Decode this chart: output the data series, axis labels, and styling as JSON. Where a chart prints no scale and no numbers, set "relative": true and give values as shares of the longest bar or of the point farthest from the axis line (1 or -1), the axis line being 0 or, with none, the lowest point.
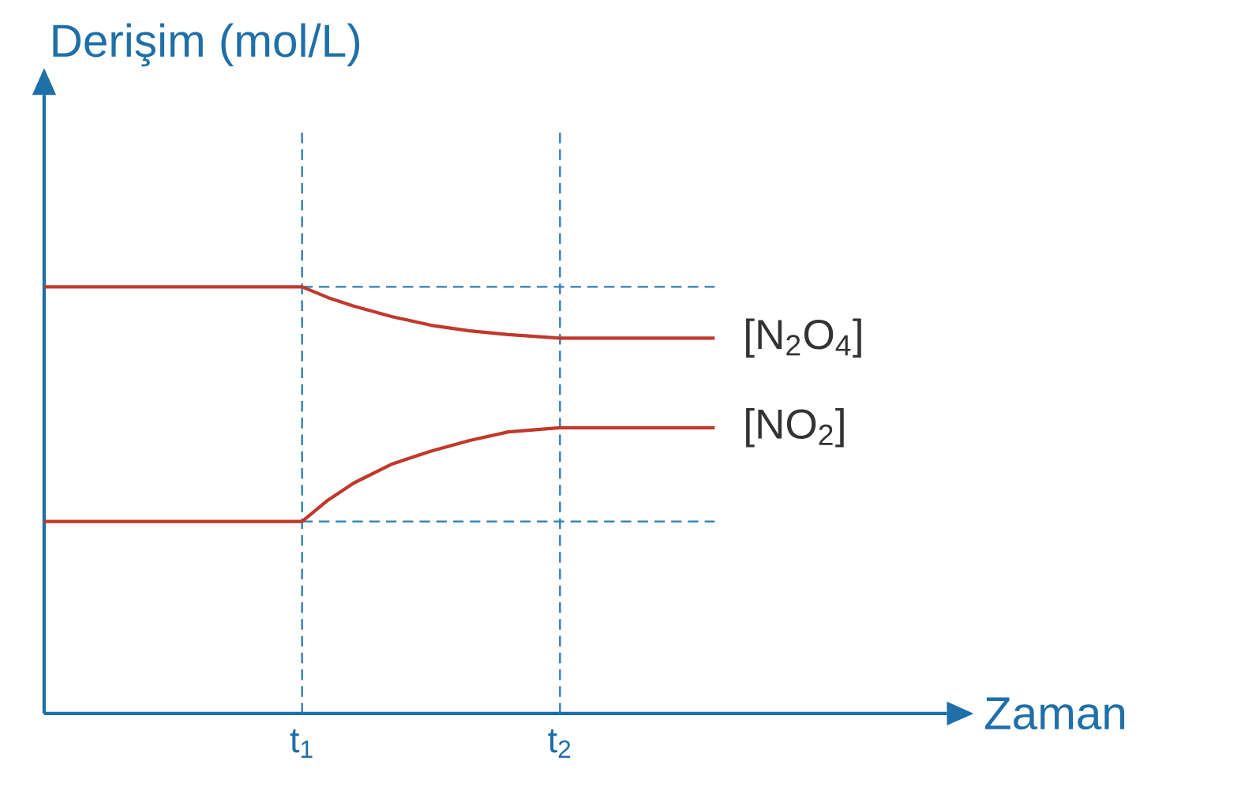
{
  "chart_data": {
    "type": "line",
    "relative": true,
    "xlabel": "Zaman",
    "ylabel": "Derişim (mol/L)",
    "xlim": [
      0,
      3.5
    ],
    "xticks": [
      {
        "value": 1,
        "label": "t$_{1}$"
      },
      {
        "value": 2,
        "label": "t$_{2}$"
      }
    ],
    "tick_labels": "x",
    "marker": "none",
    "line_style": "solid",
    "series": [
      {
        "name": "[N$_{2}$O$_{4}$]",
        "color": "#c0392b",
        "x": [
          0,
          1,
          1.1,
          1.2,
          1.35,
          1.5,
          1.65,
          1.8,
          2,
          2.6
        ],
        "values": [
          1,
          1,
          0.975,
          0.955,
          0.93,
          0.91,
          0.897,
          0.888,
          0.88,
          0.88
        ]
      },
      {
        "name": "[NO$_{2}$]",
        "color": "#c0392b",
        "x": [
          0,
          1,
          1.1,
          1.2,
          1.35,
          1.5,
          1.65,
          1.8,
          2,
          2.6
        ],
        "values": [
          0.45,
          0.45,
          0.5,
          0.54,
          0.585,
          0.615,
          0.64,
          0.66,
          0.67,
          0.67
        ]
      }
    ],
    "ref_lines": [
      {
        "axis": "x",
        "value": 1,
        "color": "#2e7db5",
        "line_style": "dashed"
      },
      {
        "axis": "x",
        "value": 2,
        "color": "#2e7db5",
        "line_style": "dashed"
      },
      {
        "axis": "y",
        "value": 1,
        "color": "#2e7db5",
        "line_style": "dashed"
      },
      {
        "axis": "y",
        "value": 0.45,
        "color": "#2e7db5",
        "line_style": "dashed"
      }
    ]
  }
}
